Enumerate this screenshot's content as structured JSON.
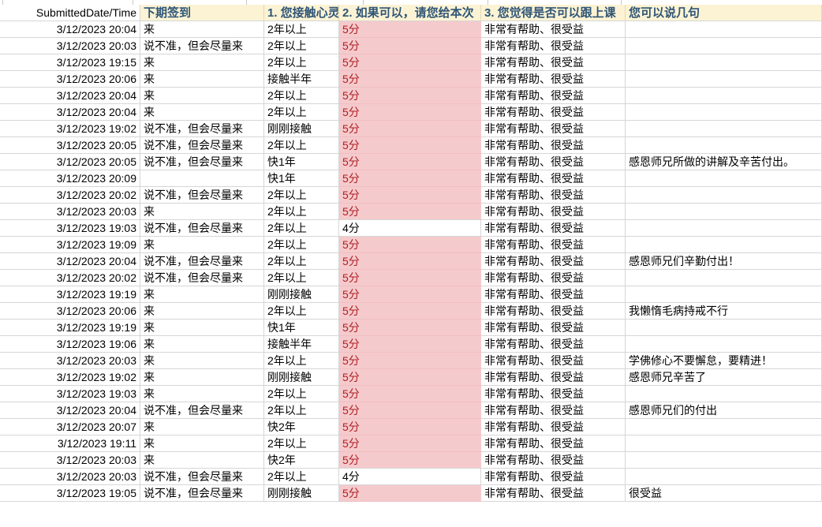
{
  "colors": {
    "header_bg": "#fcf3d4",
    "header_text": "#2e5577",
    "score_highlight_bg": "#f5cacc",
    "score_highlight_text": "#b02025",
    "gridline": "#d6d6d6"
  },
  "table": {
    "columns": [
      {
        "key": "submitted",
        "label": "SubmittedDate/Time"
      },
      {
        "key": "signin",
        "label": "下期签到"
      },
      {
        "key": "q1",
        "label": "1. 您接触心灵"
      },
      {
        "key": "score",
        "label": "2. 如果可以，请您给本次"
      },
      {
        "key": "q3",
        "label": "3. 您觉得是否可以跟上课"
      },
      {
        "key": "comment",
        "label": "您可以说几句"
      }
    ],
    "rows": [
      {
        "submitted": "3/12/2023 20:04",
        "signin": "来",
        "q1": "2年以上",
        "score": "5分",
        "q3": "非常有帮助、很受益",
        "comment": ""
      },
      {
        "submitted": "3/12/2023 20:03",
        "signin": "说不准，但会尽量来",
        "q1": "2年以上",
        "score": "5分",
        "q3": "非常有帮助、很受益",
        "comment": ""
      },
      {
        "submitted": "3/12/2023 19:15",
        "signin": "来",
        "q1": "2年以上",
        "score": "5分",
        "q3": "非常有帮助、很受益",
        "comment": ""
      },
      {
        "submitted": "3/12/2023 20:06",
        "signin": "来",
        "q1": "接触半年",
        "score": "5分",
        "q3": "非常有帮助、很受益",
        "comment": ""
      },
      {
        "submitted": "3/12/2023 20:04",
        "signin": "来",
        "q1": "2年以上",
        "score": "5分",
        "q3": "非常有帮助、很受益",
        "comment": ""
      },
      {
        "submitted": "3/12/2023 20:04",
        "signin": "来",
        "q1": "2年以上",
        "score": "5分",
        "q3": "非常有帮助、很受益",
        "comment": ""
      },
      {
        "submitted": "3/12/2023 19:02",
        "signin": "说不准，但会尽量来",
        "q1": "刚刚接触",
        "score": "5分",
        "q3": "非常有帮助、很受益",
        "comment": ""
      },
      {
        "submitted": "3/12/2023 20:05",
        "signin": "说不准，但会尽量来",
        "q1": "2年以上",
        "score": "5分",
        "q3": "非常有帮助、很受益",
        "comment": ""
      },
      {
        "submitted": "3/12/2023 20:05",
        "signin": "说不准，但会尽量来",
        "q1": "快1年",
        "score": "5分",
        "q3": "非常有帮助、很受益",
        "comment": "感恩师兄所做的讲解及辛苦付出。"
      },
      {
        "submitted": "3/12/2023 20:09",
        "signin": "",
        "q1": "快1年",
        "score": "5分",
        "q3": "非常有帮助、很受益",
        "comment": ""
      },
      {
        "submitted": "3/12/2023 20:02",
        "signin": "说不准，但会尽量来",
        "q1": "2年以上",
        "score": "5分",
        "q3": "非常有帮助、很受益",
        "comment": ""
      },
      {
        "submitted": "3/12/2023 20:03",
        "signin": "来",
        "q1": "2年以上",
        "score": "5分",
        "q3": "非常有帮助、很受益",
        "comment": ""
      },
      {
        "submitted": "3/12/2023 19:03",
        "signin": "说不准，但会尽量来",
        "q1": "2年以上",
        "score": "4分",
        "q3": "非常有帮助、很受益",
        "comment": ""
      },
      {
        "submitted": "3/12/2023 19:09",
        "signin": "来",
        "q1": "2年以上",
        "score": "5分",
        "q3": "非常有帮助、很受益",
        "comment": ""
      },
      {
        "submitted": "3/12/2023 20:04",
        "signin": "说不准，但会尽量来",
        "q1": "2年以上",
        "score": "5分",
        "q3": "非常有帮助、很受益",
        "comment": "感恩师兄们辛勤付出！"
      },
      {
        "submitted": "3/12/2023 20:02",
        "signin": "说不准，但会尽量来",
        "q1": "2年以上",
        "score": "5分",
        "q3": "非常有帮助、很受益",
        "comment": ""
      },
      {
        "submitted": "3/12/2023 19:19",
        "signin": "来",
        "q1": "刚刚接触",
        "score": "5分",
        "q3": "非常有帮助、很受益",
        "comment": ""
      },
      {
        "submitted": "3/12/2023 20:06",
        "signin": "来",
        "q1": "2年以上",
        "score": "5分",
        "q3": "非常有帮助、很受益",
        "comment": "我懒惰毛病持戒不行"
      },
      {
        "submitted": "3/12/2023 19:19",
        "signin": "来",
        "q1": "快1年",
        "score": "5分",
        "q3": "非常有帮助、很受益",
        "comment": ""
      },
      {
        "submitted": "3/12/2023 19:06",
        "signin": "来",
        "q1": "接触半年",
        "score": "5分",
        "q3": "非常有帮助、很受益",
        "comment": ""
      },
      {
        "submitted": "3/12/2023 20:03",
        "signin": "来",
        "q1": "2年以上",
        "score": "5分",
        "q3": "非常有帮助、很受益",
        "comment": "学佛修心不要懈怠，要精进！"
      },
      {
        "submitted": "3/12/2023 19:02",
        "signin": "来",
        "q1": "刚刚接触",
        "score": "5分",
        "q3": "非常有帮助、很受益",
        "comment": "感恩师兄辛苦了"
      },
      {
        "submitted": "3/12/2023 19:03",
        "signin": "来",
        "q1": "2年以上",
        "score": "5分",
        "q3": "非常有帮助、很受益",
        "comment": ""
      },
      {
        "submitted": "3/12/2023 20:04",
        "signin": "说不准，但会尽量来",
        "q1": "2年以上",
        "score": "5分",
        "q3": "非常有帮助、很受益",
        "comment": "感恩师兄们的付出"
      },
      {
        "submitted": "3/12/2023 20:07",
        "signin": "来",
        "q1": "快2年",
        "score": "5分",
        "q3": "非常有帮助、很受益",
        "comment": ""
      },
      {
        "submitted": "3/12/2023 19:11",
        "signin": "来",
        "q1": "2年以上",
        "score": "5分",
        "q3": "非常有帮助、很受益",
        "comment": ""
      },
      {
        "submitted": "3/12/2023 20:03",
        "signin": "来",
        "q1": "快2年",
        "score": "5分",
        "q3": "非常有帮助、很受益",
        "comment": ""
      },
      {
        "submitted": "3/12/2023 20:03",
        "signin": "说不准，但会尽量来",
        "q1": "2年以上",
        "score": "4分",
        "q3": "非常有帮助、很受益",
        "comment": ""
      },
      {
        "submitted": "3/12/2023 19:05",
        "signin": "说不准，但会尽量来",
        "q1": "刚刚接触",
        "score": "5分",
        "q3": "非常有帮助、很受益",
        "comment": "很受益"
      }
    ]
  }
}
